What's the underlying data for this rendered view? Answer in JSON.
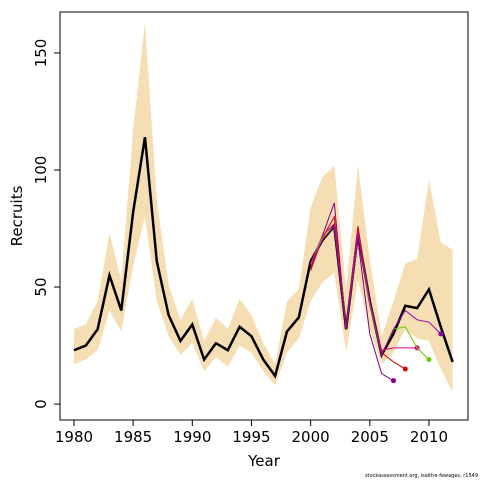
{
  "chart_data": {
    "type": "line",
    "x_label": "Year",
    "y_label": "Recruits",
    "footnote": "stockassessment.org, isaithe-fewages, r1549",
    "xlim": [
      1978.82,
      2013.3
    ],
    "ylim": [
      -6.8,
      167.5
    ],
    "xticks": [
      1980,
      1985,
      1990,
      1995,
      2000,
      2005,
      2010
    ],
    "yticks": [
      0,
      50,
      100,
      150
    ],
    "x": [
      1980,
      1981,
      1982,
      1983,
      1984,
      1985,
      1986,
      1987,
      1988,
      1989,
      1990,
      1991,
      1992,
      1993,
      1994,
      1995,
      1996,
      1997,
      1998,
      1999,
      2000,
      2001,
      2002,
      2003,
      2004,
      2005,
      2006,
      2007,
      2008,
      2009,
      2010,
      2011,
      2012
    ],
    "band": {
      "color": "#f5deb3",
      "upper": [
        32,
        34,
        44,
        73,
        53,
        117,
        163,
        87,
        51,
        36,
        45,
        27,
        37,
        32,
        45,
        38,
        26,
        17,
        44,
        49,
        84,
        97,
        102,
        49,
        102,
        62,
        29,
        44,
        60,
        62,
        96,
        69,
        66
      ],
      "lower": [
        17,
        19,
        23,
        40,
        31,
        59,
        80,
        44,
        29,
        21,
        26,
        14,
        20,
        16,
        25,
        22,
        14,
        8,
        22,
        28,
        44,
        52,
        56,
        22,
        53,
        32,
        17,
        22,
        32,
        28,
        27,
        15,
        5
      ]
    },
    "series": [
      {
        "color": "#000000",
        "values": [
          23,
          25,
          32,
          55,
          40,
          82,
          114,
          61,
          38,
          27,
          34,
          19,
          26,
          23,
          33,
          29,
          19,
          12,
          31,
          37,
          61,
          70,
          76,
          32,
          73,
          44,
          21,
          30,
          42,
          41,
          49,
          33,
          18
        ]
      },
      {
        "color": "#800080",
        "x": [
          2000,
          2001,
          2002,
          2003,
          2004,
          2005,
          2006,
          2007
        ],
        "values": [
          58,
          72,
          86,
          32,
          70,
          30,
          13,
          10
        ]
      },
      {
        "color": "#e00000",
        "x": [
          2000,
          2001,
          2002,
          2003,
          2004,
          2005,
          2006,
          2007,
          2008
        ],
        "values": [
          57,
          71,
          80,
          33,
          76,
          44,
          22,
          18,
          15
        ]
      },
      {
        "color": "#e0007a",
        "x": [
          2000,
          2001,
          2002,
          2003,
          2004,
          2005,
          2006,
          2007,
          2008,
          2009
        ],
        "values": [
          60,
          72,
          77,
          32,
          74,
          42,
          23,
          24,
          24,
          24
        ]
      },
      {
        "color": "#66cc00",
        "x": [
          2000,
          2001,
          2002,
          2003,
          2004,
          2005,
          2006,
          2007,
          2008,
          2009,
          2010
        ],
        "values": [
          60,
          71,
          76,
          32,
          73,
          43,
          21,
          32,
          33,
          24,
          19
        ]
      },
      {
        "color": "#9900aa",
        "x": [
          2000,
          2001,
          2002,
          2003,
          2004,
          2005,
          2006,
          2007,
          2008,
          2009,
          2010,
          2011
        ],
        "values": [
          60,
          70,
          76,
          32,
          73,
          44,
          21,
          32,
          40,
          36,
          35,
          30
        ]
      }
    ]
  }
}
